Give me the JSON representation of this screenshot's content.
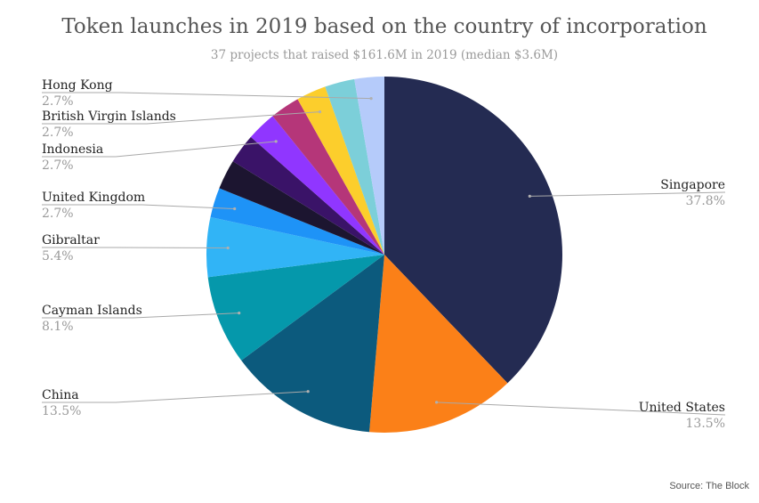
{
  "chart_data": {
    "type": "pie",
    "title": "Token launches in 2019 based on the country of incorporation",
    "subtitle": "37 projects that raised $161.6M in 2019 (median $3.6M)",
    "source": "Source: The Block",
    "slices": [
      {
        "key": "singapore",
        "name": "Singapore",
        "value": 37.8,
        "label": "37.8%",
        "color": "#242b52",
        "side": "right"
      },
      {
        "key": "united-states",
        "name": "United States",
        "value": 13.5,
        "label": "13.5%",
        "color": "#fb8018",
        "side": "right"
      },
      {
        "key": "china",
        "name": "China",
        "value": 13.5,
        "label": "13.5%",
        "color": "#0c5a7d",
        "side": "left"
      },
      {
        "key": "cayman-islands",
        "name": "Cayman Islands",
        "value": 8.1,
        "label": "8.1%",
        "color": "#0598ab",
        "side": "left"
      },
      {
        "key": "gibraltar",
        "name": "Gibraltar",
        "value": 5.4,
        "label": "5.4%",
        "color": "#31b4f6",
        "side": "left"
      },
      {
        "key": "united-kingdom",
        "name": "United Kingdom",
        "value": 2.7,
        "label": "2.7%",
        "color": "#1e93f7",
        "side": "left"
      },
      {
        "key": "slice-7",
        "name": "",
        "value": 2.7,
        "label": "",
        "color": "#1c1530",
        "side": "none"
      },
      {
        "key": "slice-8",
        "name": "",
        "value": 2.7,
        "label": "",
        "color": "#3a1368",
        "side": "none"
      },
      {
        "key": "indonesia",
        "name": "Indonesia",
        "value": 2.7,
        "label": "2.7%",
        "color": "#9036ff",
        "side": "left"
      },
      {
        "key": "slice-10",
        "name": "",
        "value": 2.7,
        "label": "",
        "color": "#b53679",
        "side": "none"
      },
      {
        "key": "british-virgin-islands",
        "name": "British Virgin Islands",
        "value": 2.7,
        "label": "2.7%",
        "color": "#fcce2c",
        "side": "left"
      },
      {
        "key": "slice-12",
        "name": "",
        "value": 2.7,
        "label": "",
        "color": "#7ccfd9",
        "side": "none"
      },
      {
        "key": "hong-kong",
        "name": "Hong Kong",
        "value": 2.7,
        "label": "2.7%",
        "color": "#b5cbfa",
        "side": "left"
      }
    ]
  }
}
